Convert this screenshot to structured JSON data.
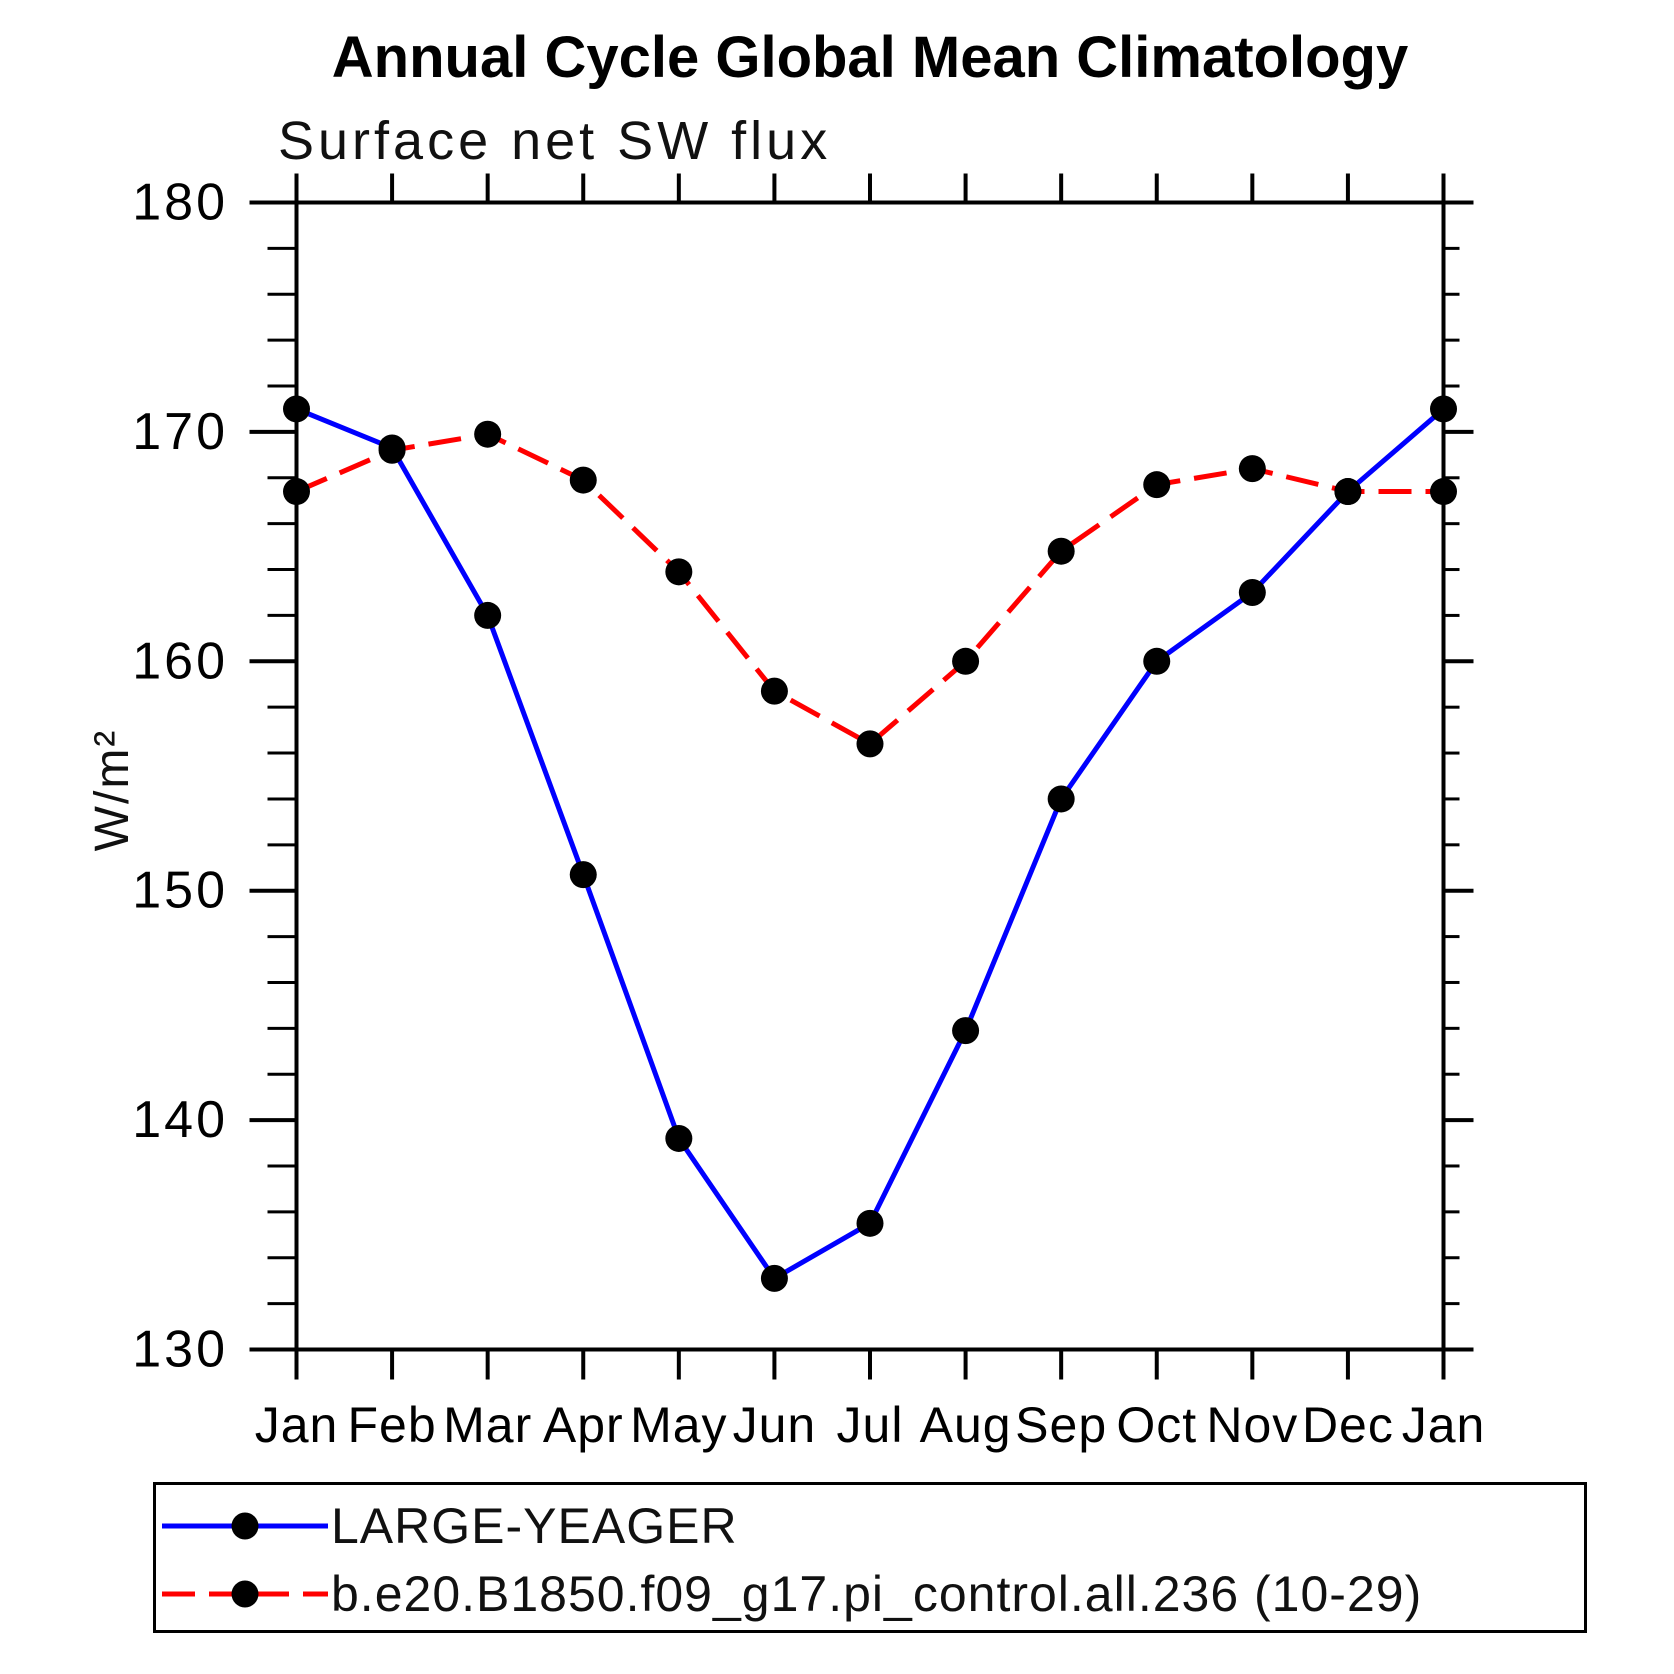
{
  "page": {
    "background": "#ffffff",
    "axis_color": "#000000"
  },
  "chart_data": {
    "type": "line",
    "title": "Annual Cycle Global Mean Climatology",
    "subtitle": "Surface net SW flux",
    "ylabel": "W/m²",
    "xlabel": "",
    "categories": [
      "Jan",
      "Feb",
      "Mar",
      "Apr",
      "May",
      "Jun",
      "Jul",
      "Aug",
      "Sep",
      "Oct",
      "Nov",
      "Dec",
      "Jan"
    ],
    "ylim": [
      130,
      180
    ],
    "ytick_major": [
      130,
      140,
      150,
      160,
      170,
      180
    ],
    "ytick_minor_step": 2,
    "grid": false,
    "legend_position": "bottom-box",
    "marker_color": "#000000",
    "series": [
      {
        "name": "LARGE-YEAGER",
        "color": "#0000ff",
        "style": "solid",
        "marker": "black-circle",
        "values": [
          171.0,
          169.3,
          162.0,
          150.7,
          139.2,
          133.1,
          135.5,
          143.9,
          154.0,
          160.0,
          163.0,
          167.4,
          171.0
        ]
      },
      {
        "name": "b.e20.B1850.f09_g17.pi_control.all.236 (10-29)",
        "color": "#ff0000",
        "style": "dashed",
        "marker": "black-circle",
        "values": [
          167.4,
          169.2,
          169.9,
          167.9,
          163.9,
          158.7,
          156.4,
          160.0,
          164.8,
          167.7,
          168.4,
          167.4,
          167.4
        ]
      }
    ]
  }
}
